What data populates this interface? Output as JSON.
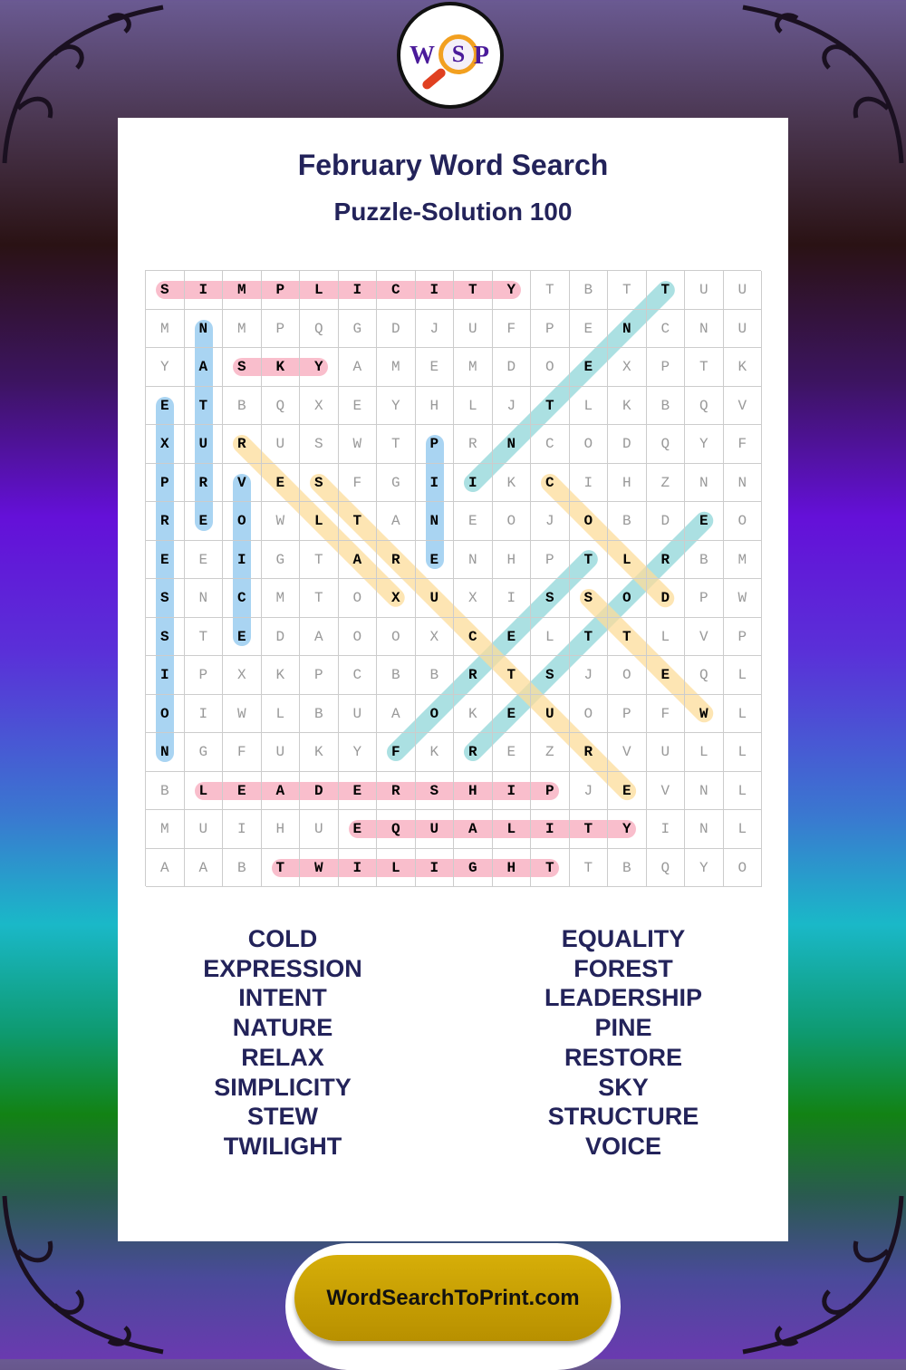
{
  "logo": {
    "letters": [
      "W",
      "S",
      "P"
    ]
  },
  "header": {
    "title": "February Word Search",
    "subtitle": "Puzzle-Solution 100"
  },
  "grid": [
    "SIMPLICITYTBTTUU",
    "MNMPQGDJUFPENCNU",
    "YASKYAMEMDOEXPTK",
    "ETBQXEYHLJTLKBQV",
    "XURUSWTPRNCODQYF",
    "PRVESFGIIKCIHZNN",
    "REOWLTANEOJOBDEO",
    "EEIGTARENHPTLRBM",
    "SNCMTOXUXISSODPW",
    "STEDAOOXCELTTLVP",
    "IPXKPCBBRTSJOEQL",
    "OIWLBUAOKEUOPFWL",
    "NGFUKYFKREZRVULL",
    "BLEADERSHIPJEVNL",
    "MUIHUEQUALITYINL",
    "AABTWILIGHTTBQYO"
  ],
  "colors": {
    "pink": "#f7a8bb",
    "blue": "#8cc6ee",
    "teal": "#8fd5d8",
    "yellow": "#fcdc9a",
    "title": "#23235a"
  },
  "solutions": [
    {
      "word": "SIMPLICITY",
      "from": [
        0,
        0
      ],
      "to": [
        0,
        9
      ],
      "color": "pink"
    },
    {
      "word": "SKY",
      "from": [
        2,
        2
      ],
      "to": [
        2,
        4
      ],
      "color": "pink"
    },
    {
      "word": "LEADERSHIP",
      "from": [
        13,
        1
      ],
      "to": [
        13,
        10
      ],
      "color": "pink"
    },
    {
      "word": "EQUALITY",
      "from": [
        14,
        5
      ],
      "to": [
        14,
        12
      ],
      "color": "pink"
    },
    {
      "word": "TWILIGHT",
      "from": [
        15,
        3
      ],
      "to": [
        15,
        10
      ],
      "color": "pink"
    },
    {
      "word": "NATURE",
      "from": [
        1,
        1
      ],
      "to": [
        6,
        1
      ],
      "color": "blue"
    },
    {
      "word": "EXPRESSION",
      "from": [
        3,
        0
      ],
      "to": [
        12,
        0
      ],
      "color": "blue"
    },
    {
      "word": "VOICE",
      "from": [
        5,
        2
      ],
      "to": [
        9,
        2
      ],
      "color": "blue"
    },
    {
      "word": "PINE",
      "from": [
        4,
        7
      ],
      "to": [
        7,
        7
      ],
      "color": "blue"
    },
    {
      "word": "INTENT",
      "from": [
        5,
        8
      ],
      "to": [
        0,
        13
      ],
      "color": "teal"
    },
    {
      "word": "FOREST",
      "from": [
        12,
        6
      ],
      "to": [
        7,
        11
      ],
      "color": "teal"
    },
    {
      "word": "RESTORE",
      "from": [
        12,
        8
      ],
      "to": [
        6,
        14
      ],
      "color": "teal"
    },
    {
      "word": "RELAX",
      "from": [
        4,
        2
      ],
      "to": [
        8,
        6
      ],
      "color": "yellow"
    },
    {
      "word": "STRUCTURE",
      "from": [
        5,
        4
      ],
      "to": [
        13,
        12
      ],
      "color": "yellow"
    },
    {
      "word": "COLD",
      "from": [
        5,
        10
      ],
      "to": [
        8,
        13
      ],
      "color": "yellow"
    },
    {
      "word": "STEW",
      "from": [
        8,
        11
      ],
      "to": [
        11,
        14
      ],
      "color": "yellow"
    }
  ],
  "word_list": {
    "left": [
      "COLD",
      "EXPRESSION",
      "INTENT",
      "NATURE",
      "RELAX",
      "SIMPLICITY",
      "STEW",
      "TWILIGHT"
    ],
    "right": [
      "EQUALITY",
      "FOREST",
      "LEADERSHIP",
      "PINE",
      "RESTORE",
      "SKY",
      "STRUCTURE",
      "VOICE"
    ]
  },
  "footer": {
    "site": "WordSearchToPrint.com"
  }
}
